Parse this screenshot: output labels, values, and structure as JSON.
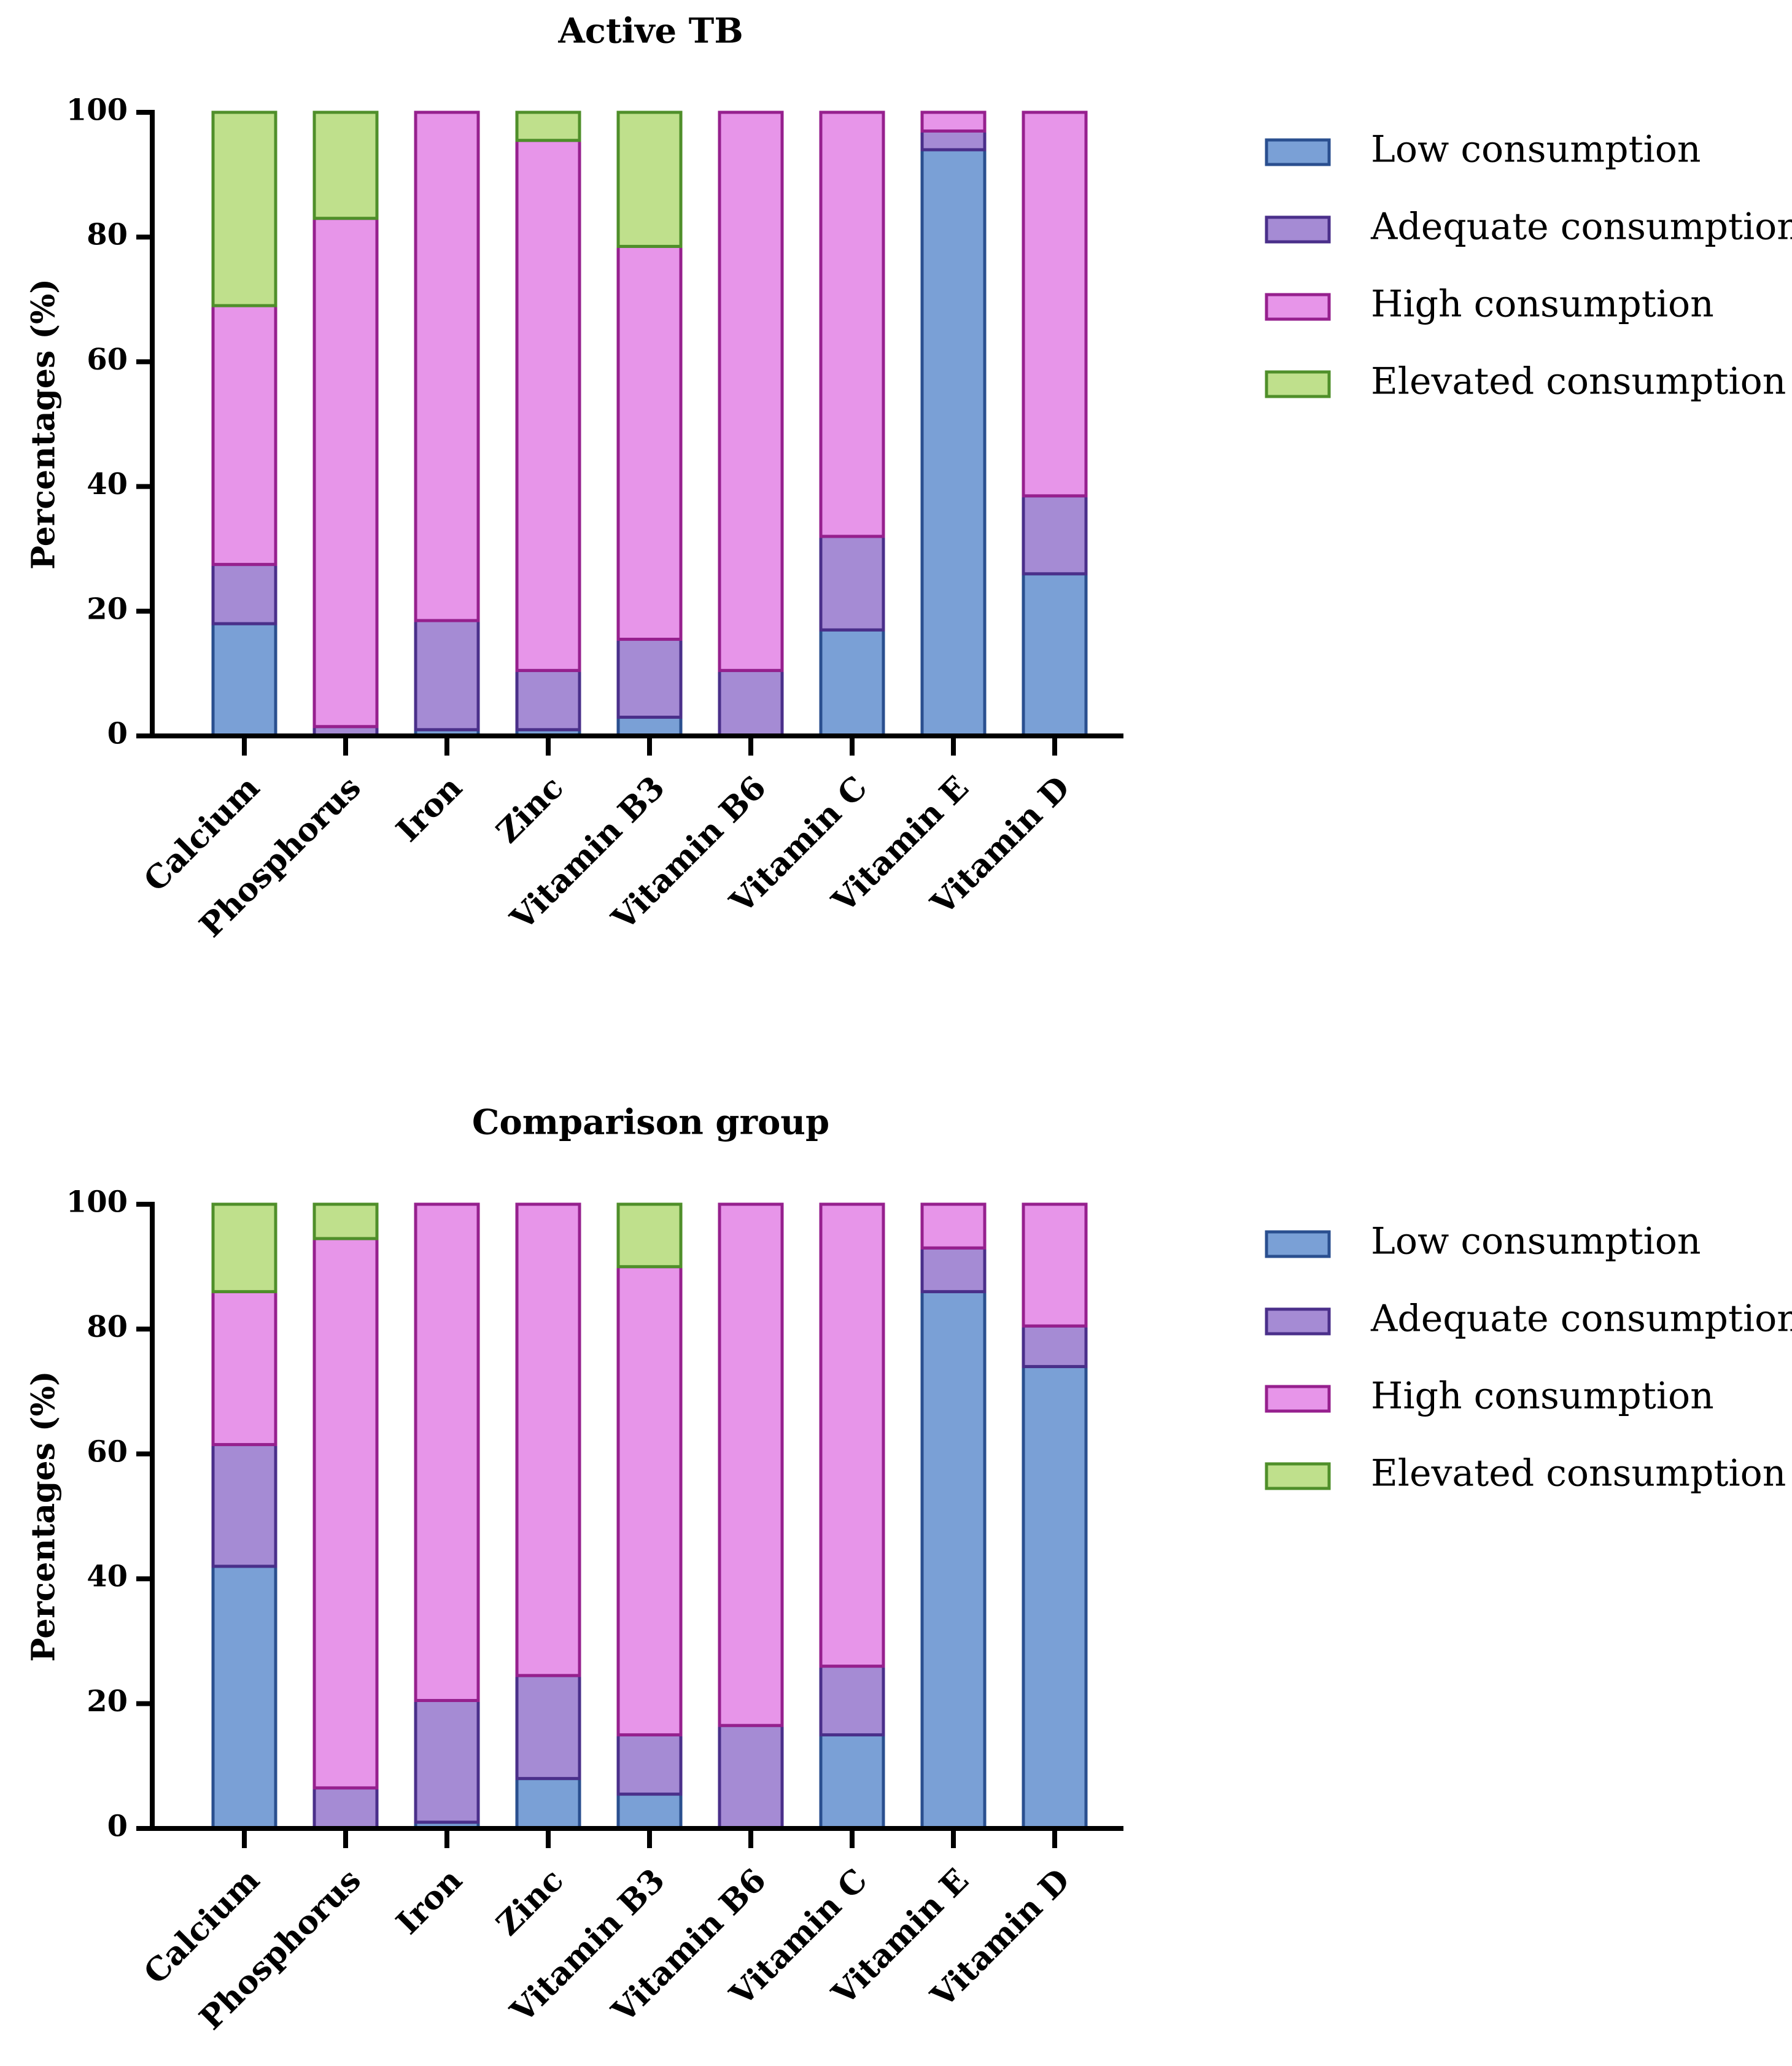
{
  "figure": {
    "series_styles": [
      {
        "name": "Low consumption",
        "fill": "#7aa0d6",
        "stroke": "#2a4f8f"
      },
      {
        "name": "Adequate consumption",
        "fill": "#a58bd4",
        "stroke": "#4a2f8a"
      },
      {
        "name": "High consumption",
        "fill": "#e795e9",
        "stroke": "#96208e"
      },
      {
        "name": "Elevated consumption",
        "fill": "#bfe08c",
        "stroke": "#4f8f2a"
      }
    ]
  },
  "chart_data": [
    {
      "type": "bar",
      "stacked": true,
      "title": "Active TB",
      "xlabel": "",
      "ylabel": "Percentages (%)",
      "ylim": [
        0,
        100
      ],
      "yticks": [
        "0",
        "20",
        "40",
        "60",
        "80",
        "100"
      ],
      "categories": [
        "Calcium",
        "Phosphorus",
        "Iron",
        "Zinc",
        "Vitamin B3",
        "Vitamin B6",
        "Vitamin C",
        "Vitamin E",
        "Vitamin D"
      ],
      "legend_position": "right",
      "series": [
        {
          "name": "Low consumption",
          "values": [
            18,
            0,
            1,
            1,
            3,
            0,
            17,
            94,
            26
          ]
        },
        {
          "name": "Adequate consumption",
          "values": [
            9.5,
            1.5,
            17.5,
            9.5,
            12.5,
            10.5,
            15,
            3,
            12.5
          ]
        },
        {
          "name": "High consumption",
          "values": [
            41.5,
            81.5,
            81.5,
            85,
            63,
            89.5,
            68,
            3,
            61.5
          ]
        },
        {
          "name": "Elevated consumption",
          "values": [
            31,
            17,
            0,
            4.5,
            21.5,
            0,
            0,
            0,
            0
          ]
        }
      ]
    },
    {
      "type": "bar",
      "stacked": true,
      "title": "Comparison group",
      "xlabel": "",
      "ylabel": "Percentages (%)",
      "ylim": [
        0,
        100
      ],
      "yticks": [
        "0",
        "20",
        "40",
        "60",
        "80",
        "100"
      ],
      "categories": [
        "Calcium",
        "Phosphorus",
        "Iron",
        "Zinc",
        "Vitamin B3",
        "Vitamin B6",
        "Vitamin C",
        "Vitamin E",
        "Vitamin D"
      ],
      "legend_position": "right",
      "series": [
        {
          "name": "Low consumption",
          "values": [
            42,
            0,
            1,
            8,
            5.5,
            0,
            15,
            86,
            74
          ]
        },
        {
          "name": "Adequate consumption",
          "values": [
            19.5,
            6.5,
            19.5,
            16.5,
            9.5,
            16.5,
            11,
            7,
            6.5
          ]
        },
        {
          "name": "High consumption",
          "values": [
            24.5,
            88,
            79.5,
            75.5,
            75,
            83.5,
            74,
            7,
            19.5
          ]
        },
        {
          "name": "Elevated consumption",
          "values": [
            14,
            5.5,
            0,
            0,
            10,
            0,
            0,
            0,
            0
          ]
        }
      ]
    }
  ]
}
